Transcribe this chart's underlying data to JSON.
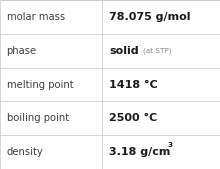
{
  "rows": [
    {
      "label": "molar mass",
      "value_main": "78.075 g/mol",
      "value_sup": null,
      "value_small": null
    },
    {
      "label": "phase",
      "value_main": "solid",
      "value_sup": null,
      "value_small": "(at STP)"
    },
    {
      "label": "melting point",
      "value_main": "1418 °C",
      "value_sup": null,
      "value_small": null
    },
    {
      "label": "boiling point",
      "value_main": "2500 °C",
      "value_sup": null,
      "value_small": null
    },
    {
      "label": "density",
      "value_main": "3.18 g/cm",
      "value_sup": "3",
      "value_small": null
    }
  ],
  "bg_color": "#ffffff",
  "border_color": "#c8c8c8",
  "label_color": "#404040",
  "value_color": "#1a1a1a",
  "small_color": "#888888",
  "col_split": 0.465,
  "label_fontsize": 7.2,
  "value_fontsize": 8.0,
  "small_fontsize": 5.2,
  "sup_fontsize": 5.2
}
